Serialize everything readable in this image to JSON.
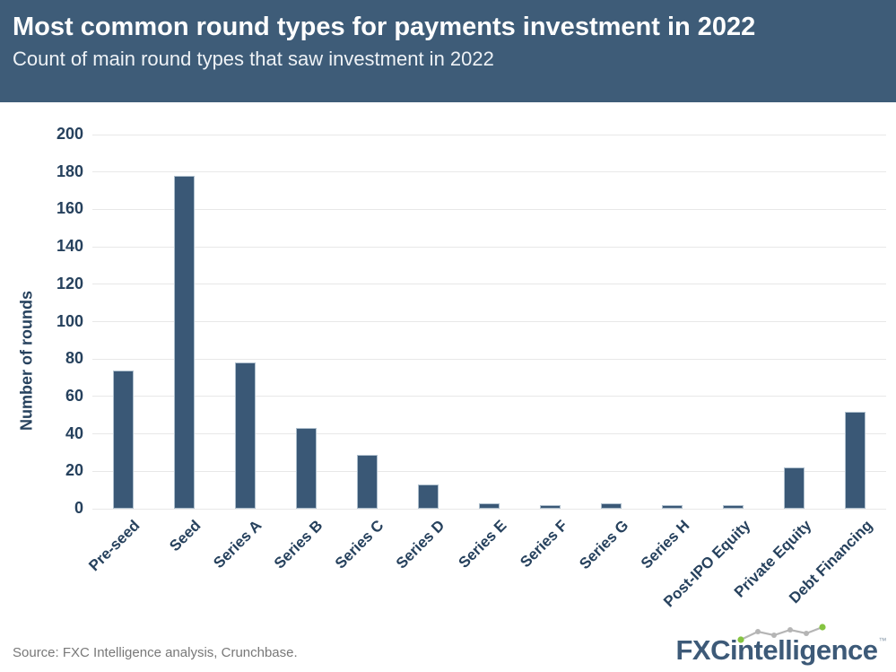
{
  "header": {
    "title": "Most common round types for payments investment in 2022",
    "subtitle": "Count of main round types that saw investment in 2022"
  },
  "chart_data": {
    "type": "bar",
    "title": "Most common round types for payments investment in 2022",
    "subtitle": "Count of main round types that saw investment in 2022",
    "categories": [
      "Pre-seed",
      "Seed",
      "Series A",
      "Series B",
      "Series C",
      "Series D",
      "Series E",
      "Series F",
      "Series G",
      "Series H",
      "Post-IPO Equity",
      "Private Equity",
      "Debt Financing"
    ],
    "values": [
      74,
      178,
      78,
      43,
      29,
      13,
      3,
      2,
      3,
      2,
      2,
      22,
      52
    ],
    "xlabel": "",
    "ylabel": "Number of rounds",
    "ylim": [
      0,
      200
    ],
    "ytick_step": 20,
    "grid": true,
    "legend_position": "none",
    "bar_color": "#3a5876"
  },
  "footer": {
    "source": "Source: FXC Intelligence analysis, Crunchbase."
  },
  "logo": {
    "bold": "FXC",
    "rest": "intelligence",
    "tm": "™"
  },
  "colors": {
    "header_bg": "#3e5c78",
    "title": "#ffffff",
    "subtitle": "#eef2f6",
    "bar_fill": "#3a5876",
    "bar_stroke": "#aebfcd",
    "grid": "#e8e8e8",
    "axis_text": "#26415d",
    "footer_text": "#787878",
    "logo_blue": "#3d5a78",
    "logo_green": "#85c441",
    "logo_gray": "#b5b5b5"
  }
}
